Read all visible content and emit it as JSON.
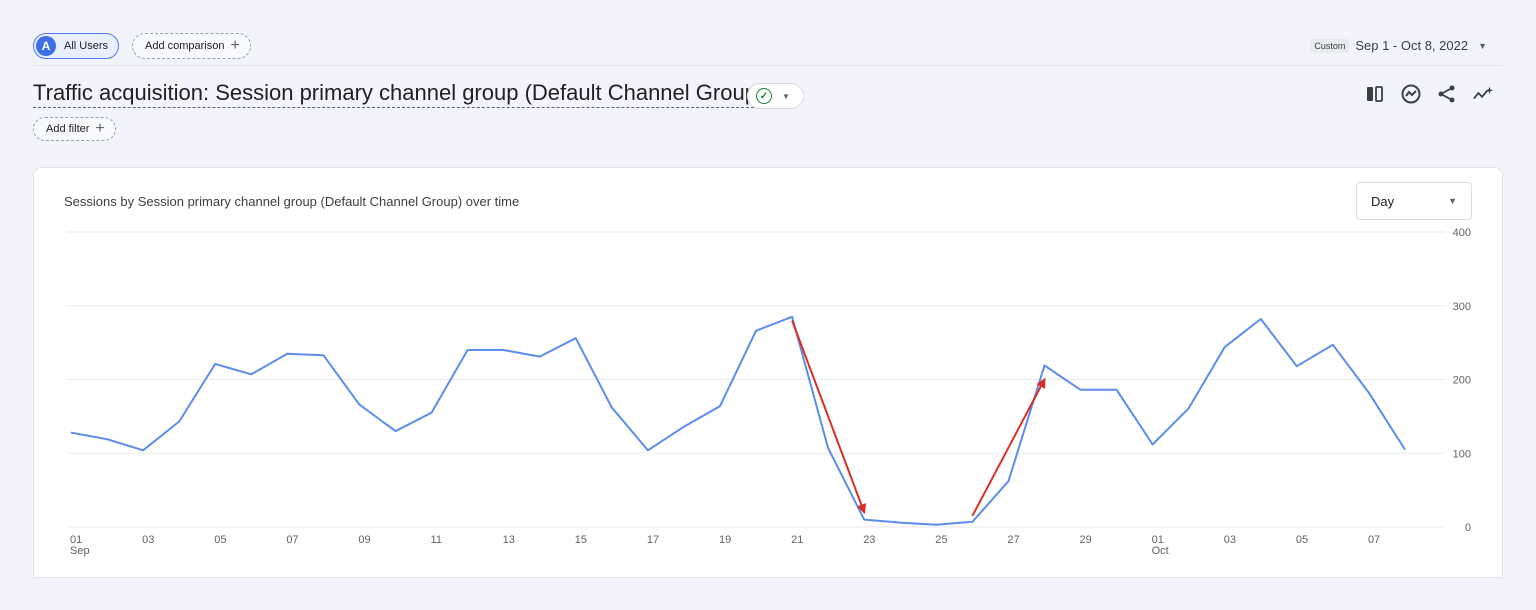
{
  "header": {
    "user_chip": {
      "avatar_letter": "A",
      "label": "All Users"
    },
    "compare_label": "Add comparison",
    "date": {
      "tag": "Custom",
      "range": "Sep 1 - Oct 8, 2022"
    }
  },
  "report": {
    "title": "Traffic acquisition: Session primary channel group (Default Channel Group)",
    "filter_label": "Add filter"
  },
  "card": {
    "title": "Sessions by Session primary channel group (Default Channel Group) over time",
    "granularity": "Day"
  },
  "colors": {
    "line": "#5b8def",
    "arrow": "#d93025",
    "accent": "#3d6fe8"
  },
  "icons": [
    "compare-columns-icon",
    "insights-icon",
    "share-icon",
    "trend-sparkle-icon"
  ],
  "chart_data": {
    "type": "line",
    "title": "Sessions by Session primary channel group (Default Channel Group) over time",
    "x": [
      "Sep 1",
      "Sep 2",
      "Sep 3",
      "Sep 4",
      "Sep 5",
      "Sep 6",
      "Sep 7",
      "Sep 8",
      "Sep 9",
      "Sep 10",
      "Sep 11",
      "Sep 12",
      "Sep 13",
      "Sep 14",
      "Sep 15",
      "Sep 16",
      "Sep 17",
      "Sep 18",
      "Sep 19",
      "Sep 20",
      "Sep 21",
      "Sep 22",
      "Sep 23",
      "Sep 24",
      "Sep 25",
      "Sep 26",
      "Sep 27",
      "Sep 28",
      "Sep 29",
      "Sep 30",
      "Oct 1",
      "Oct 2",
      "Oct 3",
      "Oct 4",
      "Oct 5",
      "Oct 6",
      "Oct 7",
      "Oct 8"
    ],
    "series": [
      {
        "values": [
          128,
          119,
          104,
          143,
          221,
          207,
          235,
          233,
          166,
          130,
          155,
          240,
          240,
          231,
          256,
          162,
          104,
          136,
          164,
          266,
          285,
          107,
          10,
          6,
          3,
          7,
          62,
          219,
          186,
          186,
          112,
          161,
          244,
          282,
          218,
          247,
          182,
          105
        ]
      }
    ],
    "ylim": [
      0,
      400
    ],
    "yticks": [
      0,
      100,
      200,
      300,
      400
    ],
    "xtick_labels": [
      {
        "index": 0,
        "label": "01",
        "sub": "Sep"
      },
      {
        "index": 2,
        "label": "03"
      },
      {
        "index": 4,
        "label": "05"
      },
      {
        "index": 6,
        "label": "07"
      },
      {
        "index": 8,
        "label": "09"
      },
      {
        "index": 10,
        "label": "11"
      },
      {
        "index": 12,
        "label": "13"
      },
      {
        "index": 14,
        "label": "15"
      },
      {
        "index": 16,
        "label": "17"
      },
      {
        "index": 18,
        "label": "19"
      },
      {
        "index": 20,
        "label": "21"
      },
      {
        "index": 22,
        "label": "23"
      },
      {
        "index": 24,
        "label": "25"
      },
      {
        "index": 26,
        "label": "27"
      },
      {
        "index": 28,
        "label": "29"
      },
      {
        "index": 30,
        "label": "01",
        "sub": "Oct"
      },
      {
        "index": 32,
        "label": "03"
      },
      {
        "index": 34,
        "label": "05"
      },
      {
        "index": 36,
        "label": "07"
      }
    ],
    "annotations": [
      {
        "type": "arrow",
        "from": {
          "x": "Sep 21",
          "y": 280
        },
        "to": {
          "x": "Sep 23",
          "y": 20
        }
      },
      {
        "type": "arrow",
        "from": {
          "x": "Sep 26",
          "y": 15
        },
        "to": {
          "x": "Sep 28",
          "y": 200
        }
      }
    ],
    "grid": true,
    "legend": "none"
  }
}
